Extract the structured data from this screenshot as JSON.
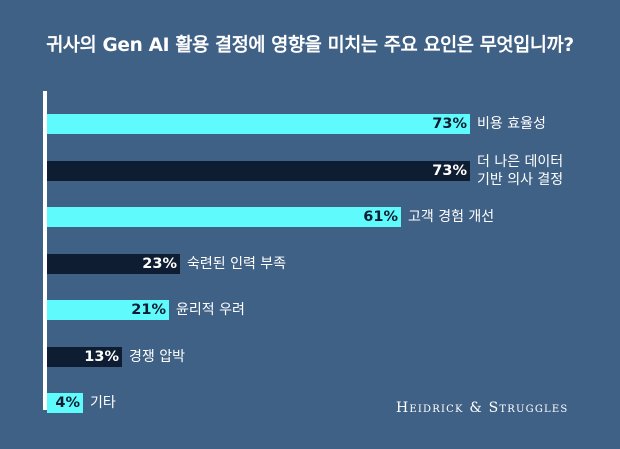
{
  "chart_data": {
    "type": "bar",
    "orientation": "horizontal",
    "title": "귀사의 Gen AI 활용 결정에 영향을 미치는 주요 요인은 무엇입니까?",
    "categories": [
      "비용 효율성",
      "더 나은 데이터 기반 의사 결정",
      "고객 경험 개선",
      "숙련된 인력 부족",
      "윤리적 우려",
      "경쟁 압박",
      "기타"
    ],
    "values": [
      73,
      73,
      61,
      23,
      21,
      13,
      4
    ],
    "value_labels": [
      "73%",
      "73%",
      "61%",
      "23%",
      "21%",
      "13%",
      "4%"
    ],
    "bar_colors": [
      "#5EFAFC",
      "#0E1D31",
      "#5EFAFC",
      "#0E1D31",
      "#5EFAFC",
      "#0E1D31",
      "#5EFAFC"
    ],
    "value_text_colors": [
      "#0E1D31",
      "#ffffff",
      "#0E1D31",
      "#ffffff",
      "#0E1D31",
      "#ffffff",
      "#0E1D31"
    ],
    "category_lines": [
      [
        "비용 효율성"
      ],
      [
        "더 나은 데이터",
        "기반 의사 결정"
      ],
      [
        "고객 경험 개선"
      ],
      [
        "숙련된 인력 부족"
      ],
      [
        "윤리적 우려"
      ],
      [
        "경쟁 압박"
      ],
      [
        "기타"
      ]
    ],
    "xlim": [
      0,
      100
    ],
    "grid": false,
    "legend": "none"
  },
  "brand": "Heidrick & Struggles",
  "colors": {
    "background": "#406186",
    "accent_light": "#5EFAFC",
    "accent_dark": "#0E1D31",
    "text": "#ffffff"
  }
}
